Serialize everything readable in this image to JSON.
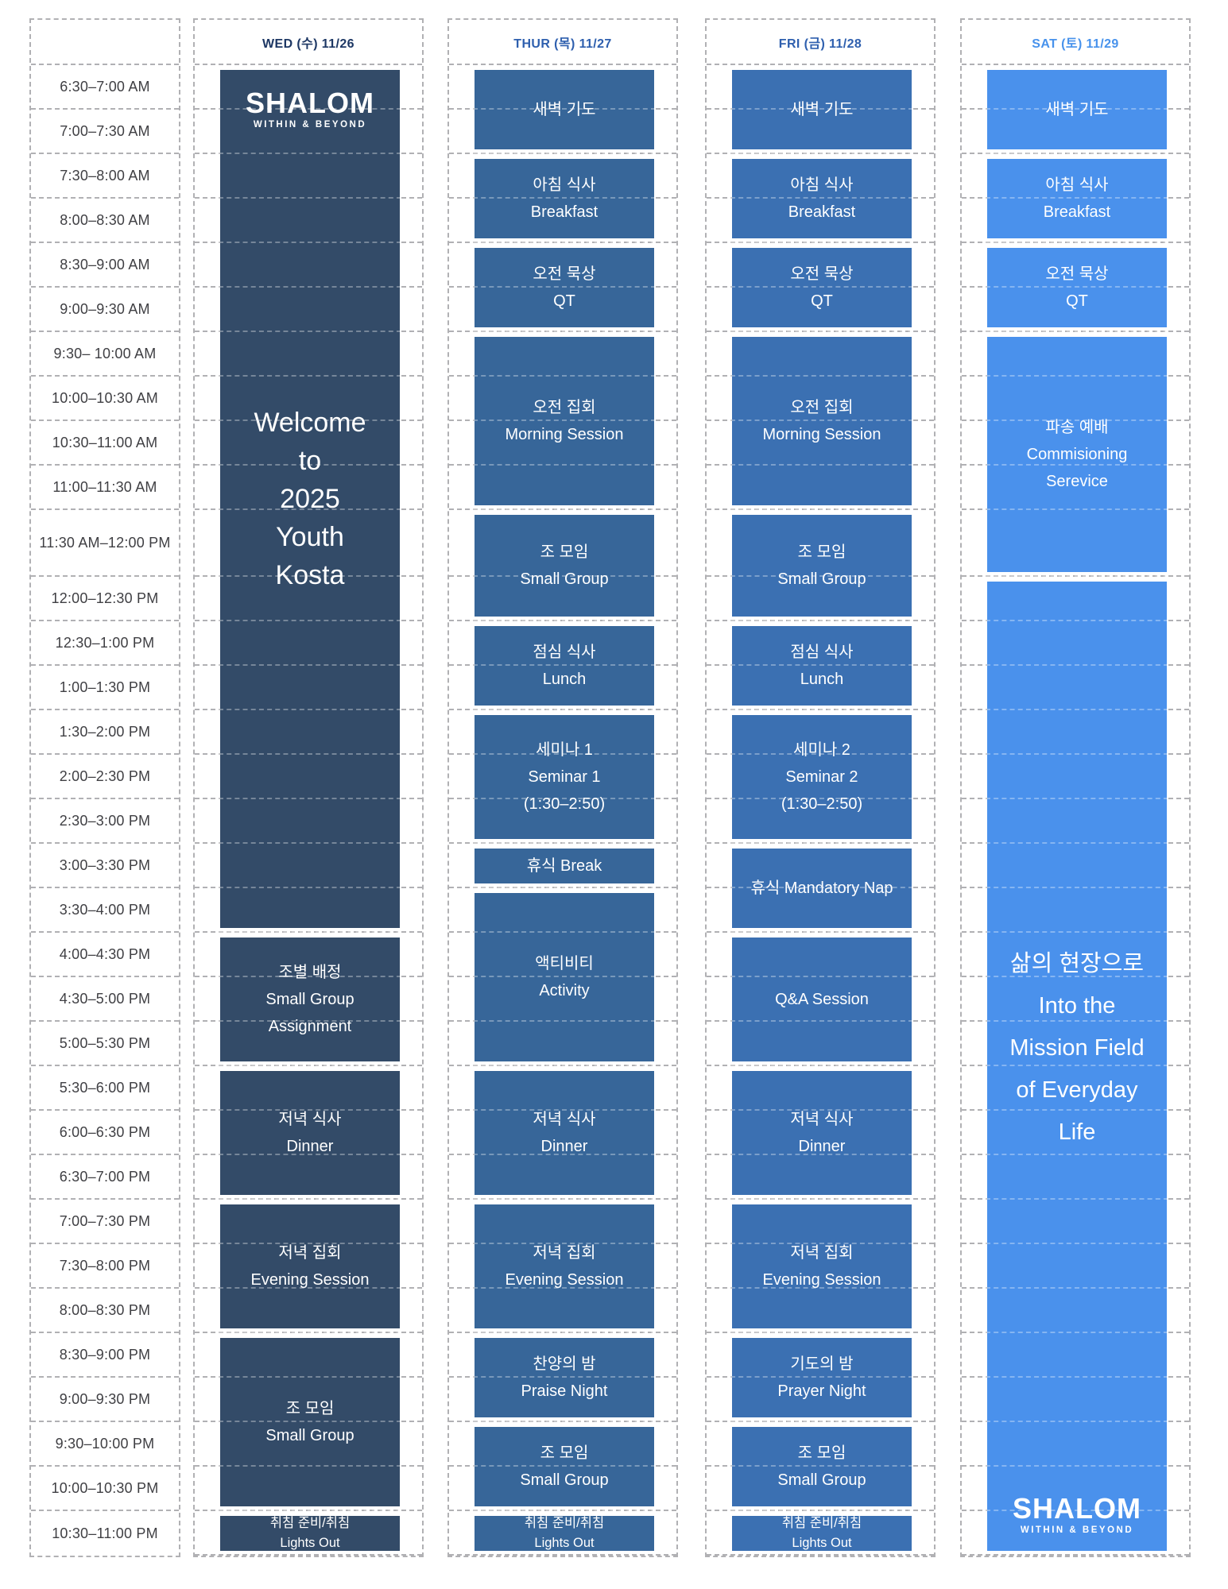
{
  "logo": {
    "title": "SHALOM",
    "subtitle": "WITHIN & BEYOND"
  },
  "grid": {
    "dash_color": "#b1b1b4",
    "background": "#ffffff"
  },
  "time_column": {
    "header": "",
    "slots": [
      "6:30–7:00 AM",
      "7:00–7:30 AM",
      "7:30–8:00 AM",
      "8:00–8:30 AM",
      "8:30–9:00 AM",
      "9:00–9:30 AM",
      "9:30– 10:00 AM",
      "10:00–10:30 AM",
      "10:30–11:00 AM",
      "11:00–11:30 AM",
      "11:30 AM–12:00 PM",
      "12:00–12:30 PM",
      "12:30–1:00 PM",
      "1:00–1:30 PM",
      "1:30–2:00 PM",
      "2:00–2:30 PM",
      "2:30–3:00 PM",
      "3:00–3:30 PM",
      "3:30–4:00 PM",
      "4:00–4:30 PM",
      "4:30–5:00 PM",
      "5:00–5:30 PM",
      "5:30–6:00 PM",
      "6:00–6:30 PM",
      "6:30–7:00 PM",
      "7:00–7:30 PM",
      "7:30–8:00 PM",
      "8:00–8:30 PM",
      "8:30–9:00 PM",
      "9:00–9:30 PM",
      "9:30–10:00 PM",
      "10:00–10:30 PM",
      "10:30–11:00 PM"
    ]
  },
  "days": [
    {
      "label": "WED (수) 11/26",
      "header_text_color": "#1d3764",
      "block_color": "#334b68",
      "blocks": [
        {
          "rows": [
            1,
            19
          ],
          "kind": "welcome",
          "logo": "top",
          "lines": [
            "Welcome",
            "to",
            "2025",
            "Youth",
            "Kosta"
          ]
        },
        {
          "rows": [
            20,
            22
          ],
          "lines": [
            "조별 배정",
            "Small Group",
            "Assignment"
          ]
        },
        {
          "rows": [
            23,
            25
          ],
          "lines": [
            "저녁 식사",
            "Dinner"
          ]
        },
        {
          "rows": [
            26,
            28
          ],
          "lines": [
            "저녁 집회",
            "Evening Session"
          ]
        },
        {
          "rows": [
            29,
            32
          ],
          "lines": [
            "조 모임",
            "Small Group"
          ]
        },
        {
          "rows": [
            33,
            33
          ],
          "kind": "small",
          "lines": [
            "취침 준비/취침",
            "Lights Out"
          ]
        }
      ]
    },
    {
      "label": "THUR (목) 11/27",
      "header_text_color": "#2e5fae",
      "block_color": "#376699",
      "blocks": [
        {
          "rows": [
            1,
            2
          ],
          "lines": [
            "새벽 기도"
          ]
        },
        {
          "rows": [
            3,
            4
          ],
          "lines": [
            "아침 식사",
            "Breakfast"
          ]
        },
        {
          "rows": [
            5,
            6
          ],
          "lines": [
            "오전 묵상",
            "QT"
          ]
        },
        {
          "rows": [
            7,
            10
          ],
          "lines": [
            "오전 집회",
            "Morning Session"
          ]
        },
        {
          "rows": [
            11,
            12
          ],
          "lines": [
            "조 모임",
            "Small Group"
          ]
        },
        {
          "rows": [
            13,
            14
          ],
          "lines": [
            "점심 식사",
            "Lunch"
          ]
        },
        {
          "rows": [
            15,
            17
          ],
          "lines": [
            "세미나 1",
            "Seminar 1",
            "(1:30–2:50)"
          ]
        },
        {
          "rows": [
            18,
            18
          ],
          "lines": [
            "휴식 Break"
          ]
        },
        {
          "rows": [
            19,
            22
          ],
          "lines": [
            "액티비티",
            "Activity"
          ]
        },
        {
          "rows": [
            23,
            25
          ],
          "lines": [
            "저녁 식사",
            "Dinner"
          ]
        },
        {
          "rows": [
            26,
            28
          ],
          "lines": [
            "저녁 집회",
            "Evening Session"
          ]
        },
        {
          "rows": [
            29,
            30
          ],
          "lines": [
            "찬양의 밤",
            "Praise Night"
          ]
        },
        {
          "rows": [
            31,
            32
          ],
          "lines": [
            "조 모임",
            "Small Group"
          ]
        },
        {
          "rows": [
            33,
            33
          ],
          "kind": "small",
          "lines": [
            "취침 준비/취침",
            "Lights Out"
          ]
        }
      ]
    },
    {
      "label": "FRI (금) 11/28",
      "header_text_color": "#2e5fae",
      "block_color": "#3b70b2",
      "blocks": [
        {
          "rows": [
            1,
            2
          ],
          "lines": [
            "새벽 기도"
          ]
        },
        {
          "rows": [
            3,
            4
          ],
          "lines": [
            "아침 식사",
            "Breakfast"
          ]
        },
        {
          "rows": [
            5,
            6
          ],
          "lines": [
            "오전 묵상",
            "QT"
          ]
        },
        {
          "rows": [
            7,
            10
          ],
          "lines": [
            "오전 집회",
            "Morning Session"
          ]
        },
        {
          "rows": [
            11,
            12
          ],
          "lines": [
            "조 모임",
            "Small Group"
          ]
        },
        {
          "rows": [
            13,
            14
          ],
          "lines": [
            "점심 식사",
            "Lunch"
          ]
        },
        {
          "rows": [
            15,
            17
          ],
          "lines": [
            "세미나 2",
            "Seminar 2",
            "(1:30–2:50)"
          ]
        },
        {
          "rows": [
            18,
            19
          ],
          "lines": [
            "휴식 Mandatory Nap"
          ]
        },
        {
          "rows": [
            20,
            22
          ],
          "lines": [
            "Q&A Session"
          ]
        },
        {
          "rows": [
            23,
            25
          ],
          "lines": [
            "저녁 식사",
            "Dinner"
          ]
        },
        {
          "rows": [
            26,
            28
          ],
          "lines": [
            "저녁 집회",
            "Evening Session"
          ]
        },
        {
          "rows": [
            29,
            30
          ],
          "lines": [
            "기도의 밤",
            "Prayer Night"
          ]
        },
        {
          "rows": [
            31,
            32
          ],
          "lines": [
            "조 모임",
            "Small Group"
          ]
        },
        {
          "rows": [
            33,
            33
          ],
          "kind": "small",
          "lines": [
            "취침 준비/취침",
            "Lights Out"
          ]
        }
      ]
    },
    {
      "label": "SAT (토) 11/29",
      "header_text_color": "#4792ec",
      "block_color": "#4a91ec",
      "blocks": [
        {
          "rows": [
            1,
            2
          ],
          "lines": [
            "새벽 기도"
          ]
        },
        {
          "rows": [
            3,
            4
          ],
          "lines": [
            "아침 식사",
            "Breakfast"
          ]
        },
        {
          "rows": [
            5,
            6
          ],
          "lines": [
            "오전 묵상",
            "QT"
          ]
        },
        {
          "rows": [
            7,
            11
          ],
          "lines": [
            "파송 예배",
            "Commisioning",
            "Serevice"
          ]
        },
        {
          "rows": [
            12,
            33
          ],
          "kind": "mission",
          "logo": "bottom",
          "lines": [
            "삶의 현장으로",
            "Into the",
            "Mission Field",
            "of Everyday",
            "Life"
          ]
        }
      ]
    }
  ]
}
